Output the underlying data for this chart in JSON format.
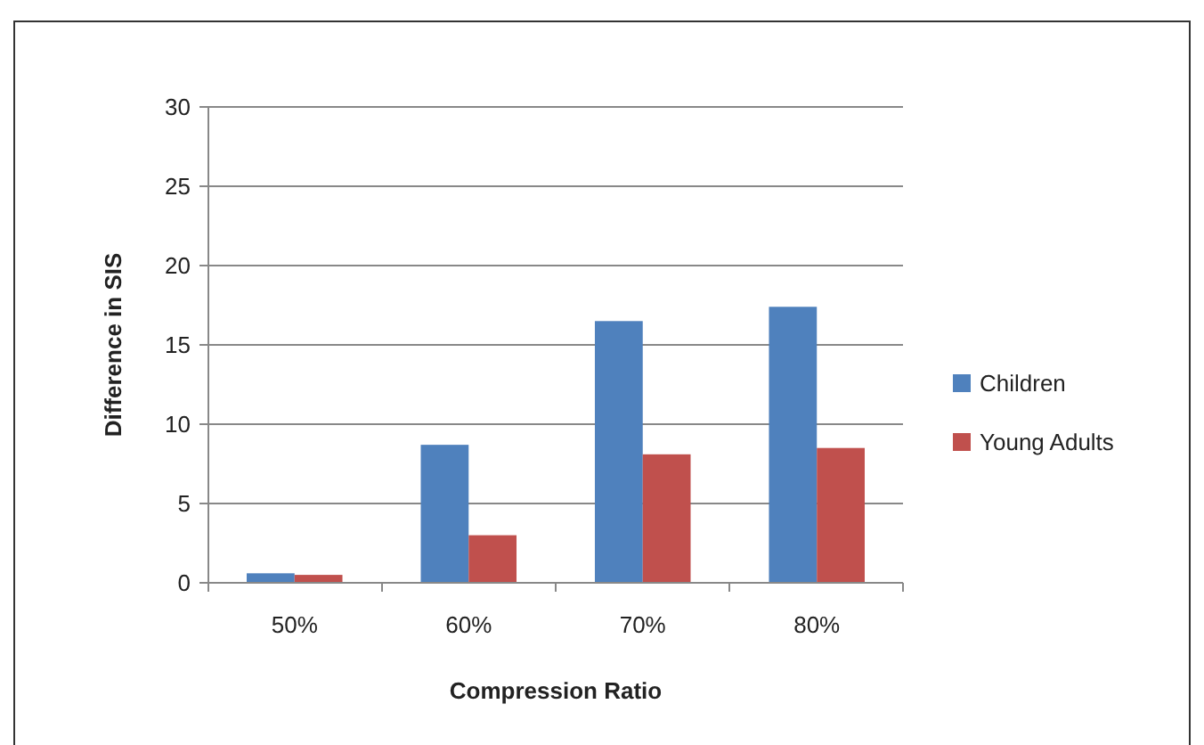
{
  "chart_data": {
    "type": "bar",
    "xlabel": "Compression Ratio",
    "ylabel": "Difference in SIS",
    "categories": [
      "50%",
      "60%",
      "70%",
      "80%"
    ],
    "series": [
      {
        "name": "Children",
        "color": "#4f81bd",
        "values": [
          0.6,
          8.7,
          16.5,
          17.4
        ]
      },
      {
        "name": "Young Adults",
        "color": "#c0504d",
        "values": [
          0.5,
          3.0,
          8.1,
          8.5
        ]
      }
    ],
    "ylim": [
      0,
      30
    ],
    "yticks": [
      0,
      5,
      10,
      15,
      20,
      25,
      30
    ],
    "grid": "y",
    "legend": "right"
  }
}
